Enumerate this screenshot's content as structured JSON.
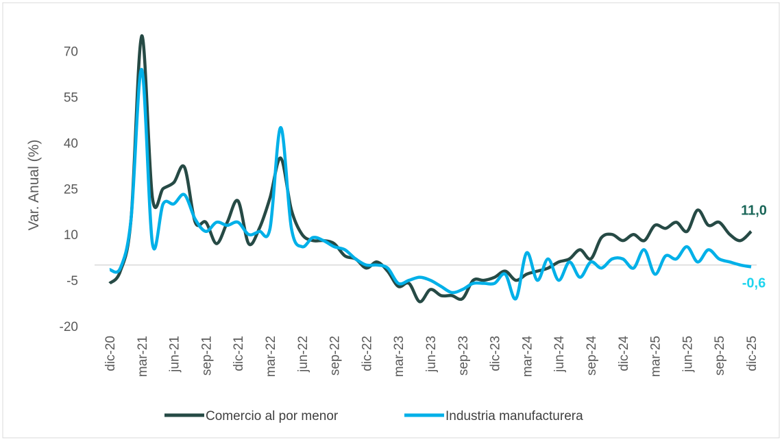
{
  "chart_data": {
    "type": "line",
    "y_label": "Var. Anual (%)",
    "categories": [
      "dic-20",
      null,
      null,
      "mar-21",
      null,
      null,
      "jun-21",
      null,
      null,
      "sep-21",
      null,
      null,
      "dic-21",
      null,
      null,
      "mar-22",
      null,
      null,
      "jun-22",
      null,
      null,
      "sep-22",
      null,
      null,
      "dic-22",
      null,
      null,
      "mar-23",
      null,
      null,
      "jun-23",
      null,
      null,
      "sep-23",
      null,
      null,
      "dic-23",
      null,
      null,
      "mar-24",
      null,
      null,
      "jun-24",
      null,
      null,
      "sep-24",
      null,
      null,
      "dic-24",
      null,
      null,
      "mar-25",
      null,
      null,
      "jun-25",
      null,
      null,
      "sep-25",
      null,
      null,
      "dic-25"
    ],
    "series": [
      {
        "name": "Comercio al por menor",
        "color": "#264a45",
        "label_color": "#1a6658",
        "values": [
          -6,
          -2,
          15,
          75,
          22,
          25,
          27,
          32,
          14,
          14,
          7,
          14,
          21,
          7,
          12,
          22,
          35,
          18,
          10,
          8,
          8,
          7,
          3,
          2,
          -1,
          1,
          -2,
          -7,
          -6,
          -12,
          -8,
          -10,
          -10,
          -11,
          -5,
          -5,
          -4,
          -2,
          -5,
          -3,
          -2,
          -1,
          1,
          2,
          5,
          2,
          9,
          10,
          8,
          10,
          8,
          13,
          12,
          14,
          11,
          18,
          13,
          14,
          10,
          8,
          11
        ],
        "value_labels": [
          null,
          null,
          null,
          null,
          null,
          null,
          null,
          null,
          null,
          null,
          null,
          null,
          null,
          null,
          null,
          null,
          null,
          null,
          null,
          null,
          null,
          null,
          null,
          null,
          null,
          null,
          null,
          null,
          null,
          null,
          null,
          null,
          null,
          null,
          null,
          null,
          null,
          null,
          null,
          null,
          null,
          null,
          null,
          null,
          null,
          null,
          null,
          null,
          null,
          null,
          null,
          null,
          null,
          null,
          null,
          null,
          null,
          null,
          null,
          null,
          "11,0"
        ]
      },
      {
        "name": "Industria manufacturera",
        "color": "#00b0e8",
        "label_color": "#1fd4ee",
        "values": [
          -1.5,
          -1,
          15,
          64,
          7,
          20,
          20,
          23,
          15,
          11,
          14,
          13,
          14,
          10,
          11,
          12,
          45,
          12,
          6,
          9,
          8,
          6,
          5,
          2,
          0,
          0,
          -1,
          -6,
          -5,
          -4,
          -5,
          -7,
          -9,
          -8,
          -6,
          -6,
          -6,
          -3,
          -11,
          4,
          -5,
          2,
          -5,
          1,
          -4,
          1,
          -1,
          2,
          2,
          -1,
          5,
          -3,
          3,
          2,
          6,
          1,
          5,
          2,
          1,
          0,
          -0.6
        ],
        "value_labels": [
          null,
          null,
          null,
          null,
          null,
          null,
          null,
          null,
          null,
          null,
          null,
          null,
          null,
          null,
          null,
          null,
          null,
          null,
          null,
          null,
          null,
          null,
          null,
          null,
          null,
          null,
          null,
          null,
          null,
          null,
          null,
          null,
          null,
          null,
          null,
          null,
          null,
          null,
          null,
          null,
          null,
          null,
          null,
          null,
          null,
          null,
          null,
          null,
          null,
          null,
          null,
          null,
          null,
          null,
          null,
          null,
          null,
          null,
          null,
          null,
          "-0,6"
        ]
      }
    ],
    "ylim": [
      -20,
      80
    ],
    "yticks": [
      -20,
      -5,
      10,
      25,
      40,
      55,
      70
    ],
    "zero_line": true
  }
}
